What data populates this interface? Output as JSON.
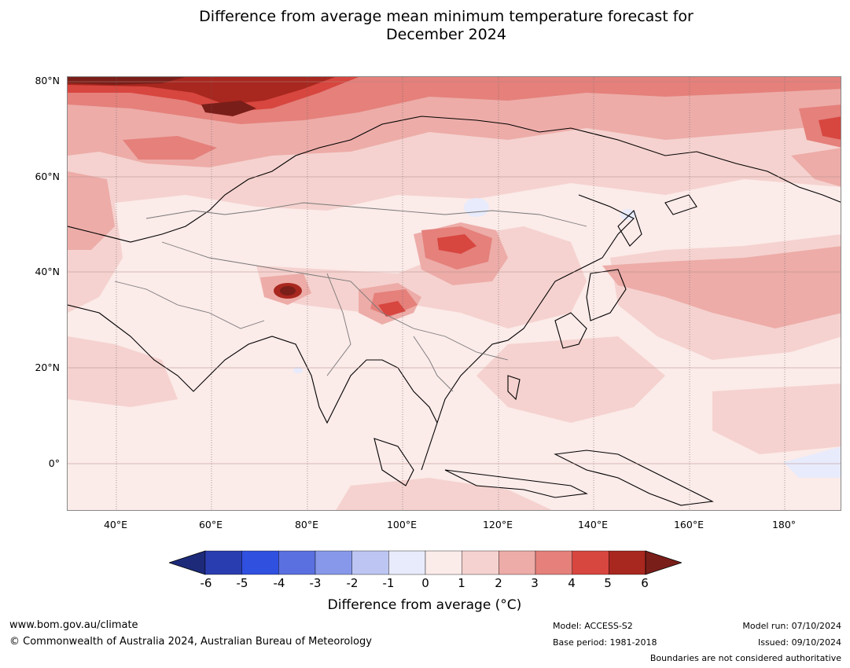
{
  "title": {
    "line1": "Difference from average mean minimum temperature forecast for",
    "line2": "December 2024"
  },
  "map": {
    "region": "Asia",
    "lat_labels": [
      "80°N",
      "60°N",
      "40°N",
      "20°N",
      "0°"
    ],
    "lon_labels": [
      "40°E",
      "60°E",
      "80°E",
      "100°E",
      "120°E",
      "140°E",
      "160°E",
      "180°"
    ],
    "lon_range": [
      30,
      192
    ],
    "lat_range": [
      -10,
      80
    ]
  },
  "colorbar": {
    "label": "Difference from average (°C)",
    "ticks": [
      "-6",
      "-5",
      "-4",
      "-3",
      "-2",
      "-1",
      "0",
      "1",
      "2",
      "3",
      "4",
      "5",
      "6"
    ],
    "colors": [
      "#1d2a7a",
      "#2a3db0",
      "#3050e0",
      "#5a70e0",
      "#8798ea",
      "#bdc6f2",
      "#e8ebfb",
      "#fbebe9",
      "#f5d2cf",
      "#edaca8",
      "#e5807b",
      "#d7463f",
      "#a8271f",
      "#7a1e19"
    ]
  },
  "footer": {
    "url": "www.bom.gov.au/climate",
    "copyright": "© Commonwealth of Australia 2024, Australian Bureau of Meteorology",
    "model": "Model: ACCESS-S2",
    "base_period": "Base period: 1981-2018",
    "model_run": "Model run: 07/10/2024",
    "issued": "Issued: 09/10/2024",
    "disclaimer": "Boundaries are not considered authoritative"
  }
}
